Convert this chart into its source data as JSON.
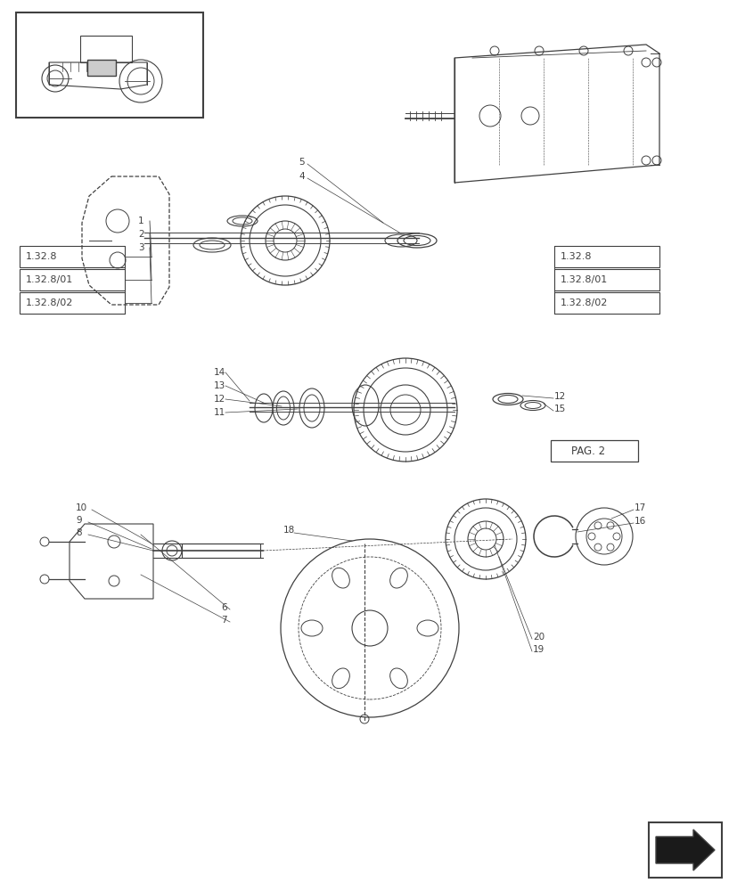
{
  "bg_color": "#ffffff",
  "line_color": "#404040",
  "ref_boxes_left": [
    "1.32.8",
    "1.32.8/01",
    "1.32.8/02"
  ],
  "ref_boxes_right": [
    "1.32.8",
    "1.32.8/01",
    "1.32.8/02"
  ],
  "pag_label": "PAG. 2",
  "part_numbers_left": [
    "1",
    "2",
    "3"
  ],
  "part_numbers_mid": [
    "14",
    "13",
    "12",
    "11"
  ],
  "part_numbers_mid_right": [
    "12",
    "15"
  ],
  "part_numbers_bot_left": [
    "10",
    "9",
    "8",
    "6",
    "7"
  ],
  "part_numbers_bot_right": [
    "17",
    "16",
    "18",
    "20",
    "19"
  ],
  "top_part_numbers": [
    "5",
    "4"
  ]
}
